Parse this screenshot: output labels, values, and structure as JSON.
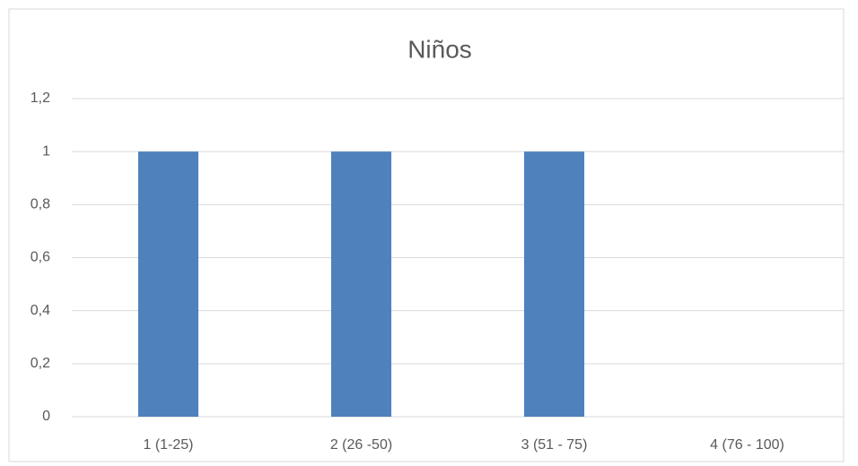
{
  "chart_data": {
    "type": "bar",
    "title": "Niños",
    "categories": [
      "1 (1-25)",
      "2 (26 -50)",
      "3 (51 - 75)",
      "4 (76 - 100)"
    ],
    "values": [
      1,
      1,
      1,
      0
    ],
    "color": "#4f81bd",
    "ylim": [
      0,
      1.2
    ],
    "yticks": [
      0,
      {
        "value": 0.2,
        "label": "0,2"
      },
      {
        "value": 0.4,
        "label": "0,4"
      },
      {
        "value": 0.6,
        "label": "0,6"
      },
      {
        "value": 0.8,
        "label": "0,8"
      },
      1,
      {
        "value": 1.2,
        "label": "1,2"
      }
    ],
    "grid": true
  }
}
